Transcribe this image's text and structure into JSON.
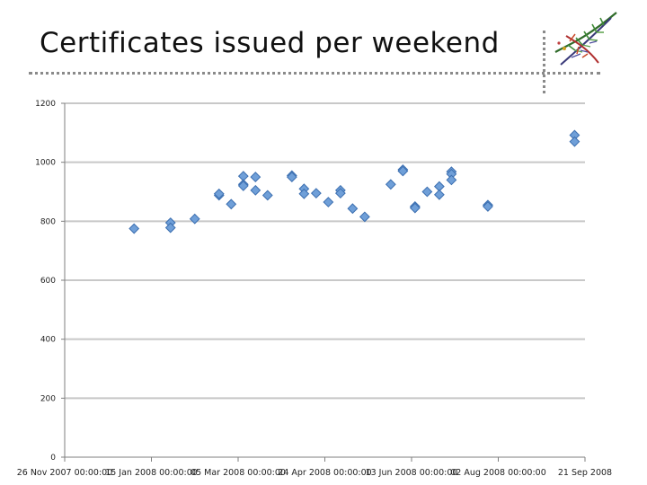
{
  "slide": {
    "title": "Certificates issued per weekend"
  },
  "colors": {
    "marker": "#6f9fd8",
    "marker_edge": "#3c6fb0",
    "grid": "#c8c8c8",
    "axis": "#7f7f7f"
  },
  "chart_data": {
    "type": "scatter",
    "title": "",
    "xlabel": "",
    "ylabel": "",
    "ylim": [
      0,
      1200
    ],
    "yticks": [
      0,
      200,
      400,
      600,
      800,
      1000,
      1200
    ],
    "xlim": [
      "2007-11-26",
      "2008-09-21"
    ],
    "xtick_labels": [
      "26 Nov 2007 00:00:00",
      "15 Jan 2008 00:00:00",
      "05 Mar 2008 00:00:00",
      "24 Apr 2008 00:00:00",
      "13 Jun 2008 00:00:00",
      "02 Aug 2008 00:00:00",
      "21 Sep 2008"
    ],
    "points": [
      {
        "x": "2008-01-05",
        "y": 775
      },
      {
        "x": "2008-01-26",
        "y": 795
      },
      {
        "x": "2008-01-26",
        "y": 778
      },
      {
        "x": "2008-02-09",
        "y": 808
      },
      {
        "x": "2008-02-23",
        "y": 888
      },
      {
        "x": "2008-02-23",
        "y": 893
      },
      {
        "x": "2008-03-01",
        "y": 858
      },
      {
        "x": "2008-03-08",
        "y": 953
      },
      {
        "x": "2008-03-08",
        "y": 925
      },
      {
        "x": "2008-03-08",
        "y": 920
      },
      {
        "x": "2008-03-15",
        "y": 950
      },
      {
        "x": "2008-03-15",
        "y": 905
      },
      {
        "x": "2008-03-22",
        "y": 888
      },
      {
        "x": "2008-04-05",
        "y": 955
      },
      {
        "x": "2008-04-05",
        "y": 950
      },
      {
        "x": "2008-04-12",
        "y": 910
      },
      {
        "x": "2008-04-12",
        "y": 893
      },
      {
        "x": "2008-04-19",
        "y": 895
      },
      {
        "x": "2008-04-26",
        "y": 865
      },
      {
        "x": "2008-05-03",
        "y": 905
      },
      {
        "x": "2008-05-03",
        "y": 895
      },
      {
        "x": "2008-05-10",
        "y": 843
      },
      {
        "x": "2008-05-17",
        "y": 815
      },
      {
        "x": "2008-06-01",
        "y": 925
      },
      {
        "x": "2008-06-08",
        "y": 975
      },
      {
        "x": "2008-06-08",
        "y": 970
      },
      {
        "x": "2008-06-15",
        "y": 850
      },
      {
        "x": "2008-06-15",
        "y": 845
      },
      {
        "x": "2008-06-22",
        "y": 900
      },
      {
        "x": "2008-06-29",
        "y": 918
      },
      {
        "x": "2008-06-29",
        "y": 890
      },
      {
        "x": "2008-07-06",
        "y": 968
      },
      {
        "x": "2008-07-06",
        "y": 960
      },
      {
        "x": "2008-07-06",
        "y": 940
      },
      {
        "x": "2008-07-27",
        "y": 855
      },
      {
        "x": "2008-07-27",
        "y": 850
      },
      {
        "x": "2008-09-15",
        "y": 1092
      },
      {
        "x": "2008-09-15",
        "y": 1070
      }
    ]
  }
}
